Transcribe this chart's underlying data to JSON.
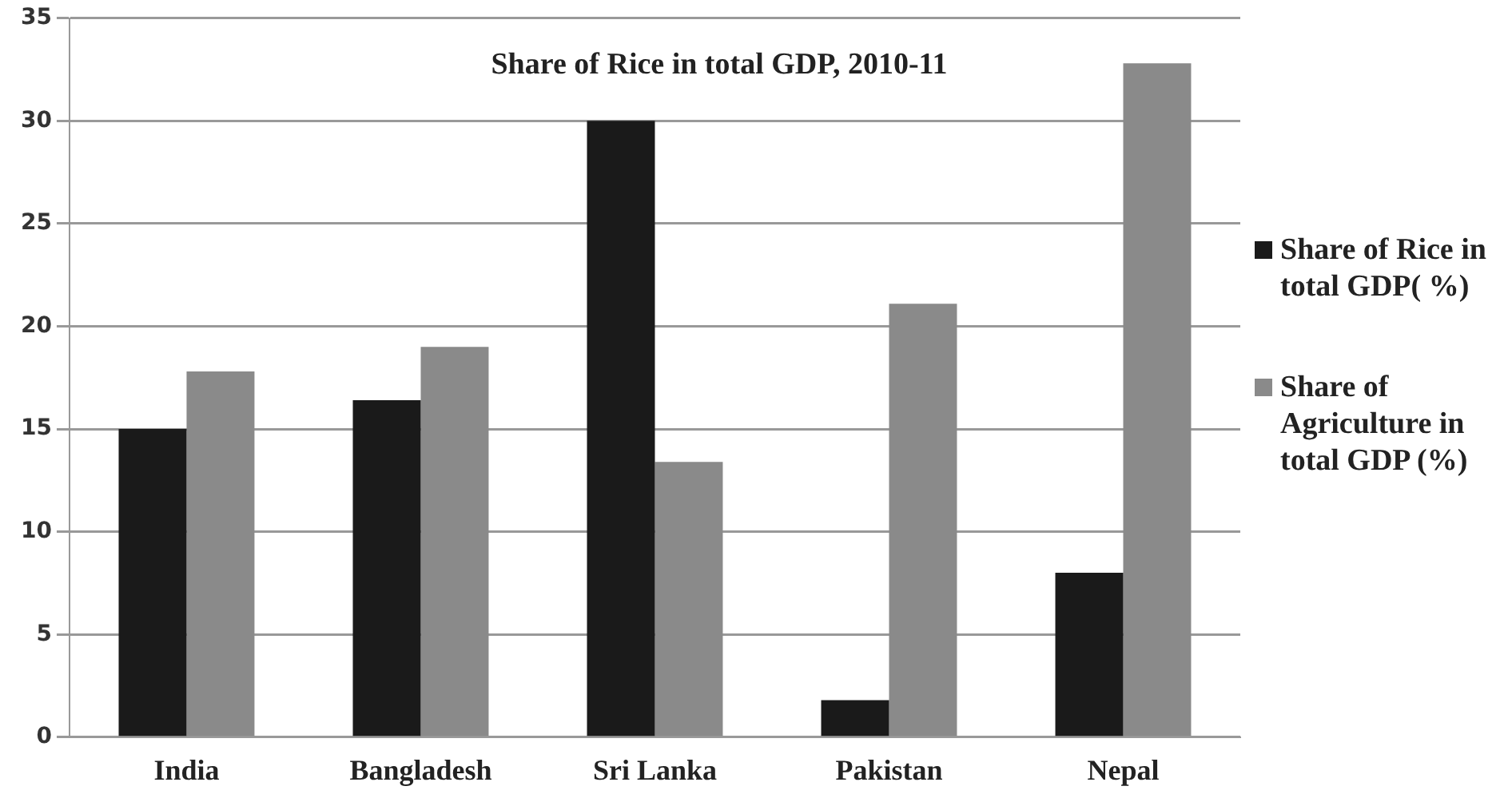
{
  "chart_data": {
    "type": "bar",
    "title": "Share of Rice in total GDP, 2010-11",
    "categories": [
      "India",
      "Bangladesh",
      "Sri Lanka",
      "Pakistan",
      "Nepal"
    ],
    "series": [
      {
        "name": "Share of Rice in total GDP( %)",
        "color": "#1a1a1a",
        "values": [
          15,
          16.4,
          30,
          1.8,
          8
        ]
      },
      {
        "name": "Share of Agriculture in total GDP (%)",
        "color": "#8a8a8a",
        "values": [
          17.8,
          19,
          13.4,
          21.1,
          32.8
        ]
      }
    ],
    "ylim": [
      0,
      35
    ],
    "yticks": [
      0,
      5,
      10,
      15,
      20,
      25,
      30,
      35
    ],
    "grid": "y",
    "legend": "right"
  }
}
